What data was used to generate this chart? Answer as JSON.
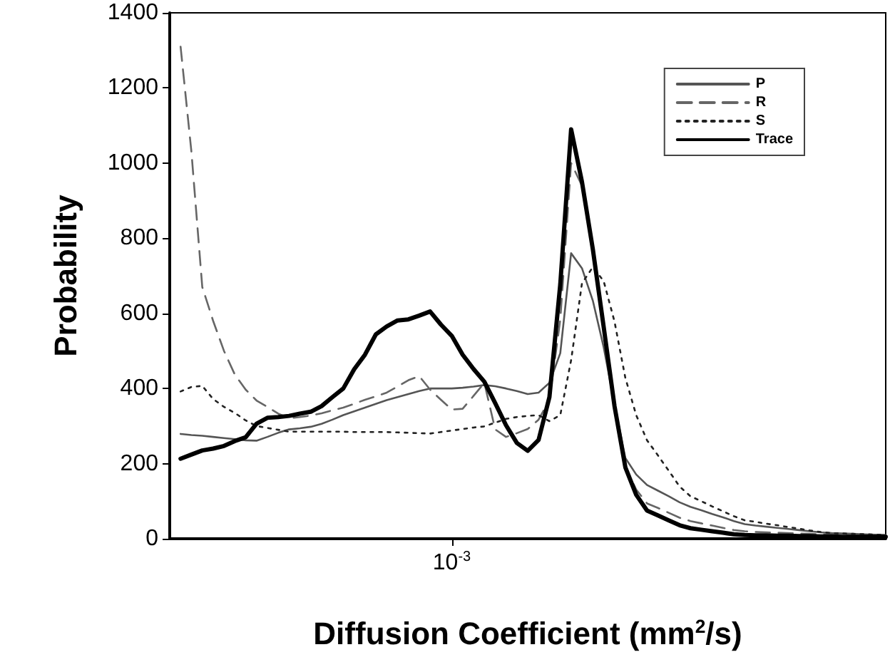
{
  "chart_data": {
    "type": "line",
    "xlabel": "Diffusion Coefficient (mm$^{2}$/s)",
    "ylabel": "Probability",
    "categories": [
      null,
      null,
      null,
      null,
      null,
      null,
      null,
      null,
      null,
      null,
      null,
      null,
      null,
      null,
      null,
      null,
      null,
      null,
      null,
      null,
      null,
      null,
      null,
      null,
      null,
      null,
      "10$^{-3}$",
      null,
      null,
      null,
      null,
      null,
      null,
      null,
      null,
      null,
      null,
      null,
      null,
      null,
      null,
      null,
      null,
      null,
      null,
      null,
      null,
      null,
      null,
      null,
      null,
      null,
      null,
      null,
      null,
      null,
      null,
      null,
      null,
      null,
      null,
      null,
      null,
      null,
      null,
      null,
      null
    ],
    "ylim": [
      0,
      1400
    ],
    "yticks": [
      0,
      200,
      400,
      600,
      800,
      1000,
      1200,
      1400
    ],
    "grid": false,
    "legend": "top right",
    "marker": "none",
    "series": [
      {
        "name": "P",
        "color": "#555555",
        "line_style": "solid",
        "values": [
          null,
          279,
          276,
          274,
          271,
          268,
          265,
          262,
          261,
          271,
          282,
          291,
          294,
          298,
          306,
          317,
          329,
          339,
          349,
          359,
          369,
          377,
          385,
          393,
          400,
          400,
          400,
          402,
          405,
          409,
          406,
          400,
          393,
          385,
          389,
          415,
          494,
          760,
          720,
          634,
          510,
          358,
          215,
          171,
          143,
          128,
          113,
          97,
          85,
          76,
          66,
          57,
          47,
          39,
          35,
          32,
          29,
          26,
          23,
          20,
          17,
          15,
          14,
          13,
          12,
          11,
          10
        ]
      },
      {
        "name": "R",
        "color": "#666666",
        "line_style": "dashed",
        "values": [
          null,
          1310,
          1030,
          670,
          580,
          500,
          437,
          397,
          368,
          351,
          333,
          321,
          324,
          328,
          334,
          342,
          349,
          359,
          370,
          379,
          389,
          405,
          422,
          433,
          397,
          370,
          344,
          346,
          380,
          415,
          291,
          271,
          281,
          292,
          317,
          370,
          583,
          1000,
          940,
          769,
          565,
          353,
          192,
          131,
          94,
          82,
          69,
          56,
          47,
          41,
          35,
          29,
          23,
          20,
          18,
          17,
          16,
          15,
          14,
          13,
          12,
          11,
          10,
          10,
          10,
          10,
          10
        ]
      },
      {
        "name": "S",
        "color": "#222222",
        "line_style": "dotted",
        "values": [
          null,
          392,
          404,
          407,
          372,
          351,
          335,
          315,
          300,
          295,
          290,
          285,
          285,
          285,
          285,
          285,
          285,
          284,
          284,
          284,
          284,
          283,
          282,
          281,
          280,
          284,
          288,
          292,
          296,
          299,
          309,
          319,
          324,
          327,
          329,
          313,
          329,
          475,
          680,
          723,
          686,
          578,
          428,
          329,
          262,
          222,
          181,
          139,
          113,
          100,
          86,
          73,
          60,
          49,
          45,
          40,
          36,
          31,
          27,
          22,
          18,
          15,
          14,
          13,
          12,
          11,
          10
        ]
      },
      {
        "name": "Trace",
        "color": "#000000",
        "line_style": "solid",
        "values": [
          null,
          213,
          224,
          235,
          240,
          247,
          260,
          270,
          306,
          322,
          324,
          327,
          333,
          338,
          353,
          377,
          400,
          451,
          490,
          544,
          565,
          581,
          584,
          594,
          605,
          570,
          540,
          490,
          452,
          418,
          361,
          302,
          255,
          234,
          263,
          377,
          677,
          1090,
          950,
          771,
          564,
          353,
          190,
          117,
          75,
          62,
          49,
          36,
          28,
          24,
          20,
          16,
          12,
          10,
          9,
          9,
          8,
          8,
          7,
          7,
          6,
          6,
          5,
          5,
          5,
          5,
          5
        ]
      }
    ]
  }
}
